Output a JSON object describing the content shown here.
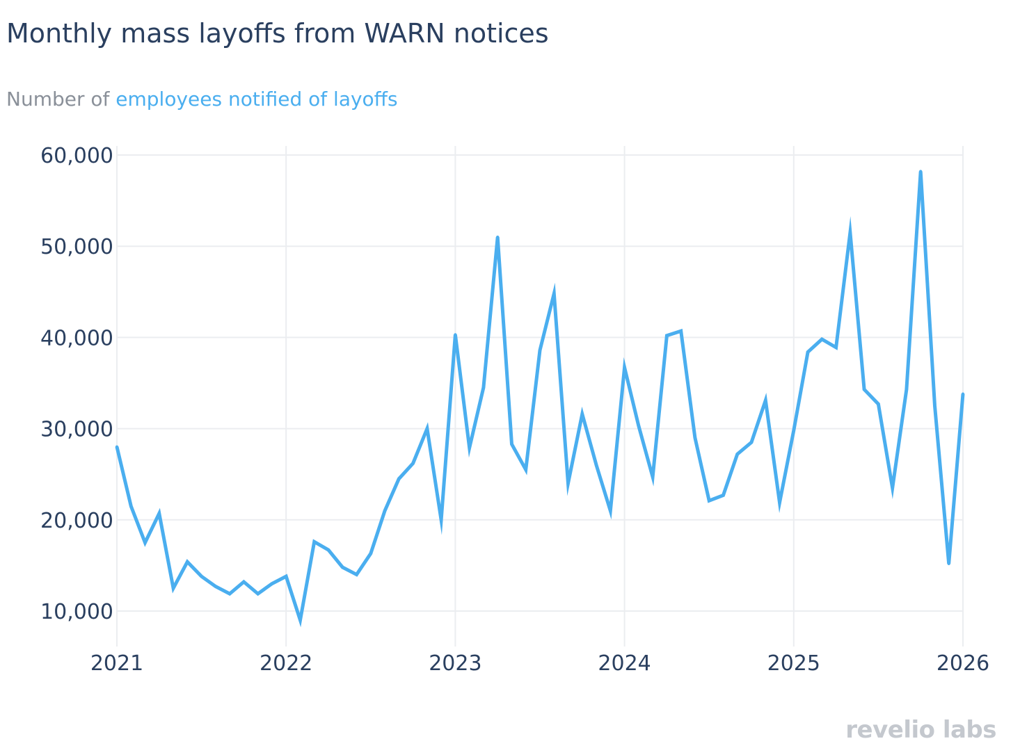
{
  "title": "Monthly mass layoffs from WARN notices",
  "subtitle": {
    "prefix": "Number of",
    "series_label": "employees notified of layoffs"
  },
  "logo": "revelio labs",
  "colors": {
    "series": "#4aaeef",
    "grid": "#ebedf0",
    "text": "#2a3f5f",
    "muted": "#8a9099"
  },
  "chart_data": {
    "type": "line",
    "x_start": "2021-01",
    "x_step": "month",
    "x_ticks": [
      "2021",
      "2022",
      "2023",
      "2024",
      "2025",
      "2026"
    ],
    "y_ticks": [
      "10,000",
      "20,000",
      "30,000",
      "40,000",
      "50,000",
      "60,000"
    ],
    "ylim": [
      6500,
      61000
    ],
    "grid": true,
    "legend": "none",
    "series": [
      {
        "name": "employees notified of layoffs",
        "values": [
          28000,
          21500,
          17500,
          20700,
          12500,
          15400,
          13800,
          12700,
          11900,
          13200,
          11900,
          13000,
          13800,
          9000,
          17600,
          16700,
          14800,
          14000,
          16300,
          21000,
          24500,
          26200,
          30000,
          20000,
          40300,
          27900,
          34500,
          51000,
          28300,
          25500,
          38600,
          44800,
          24000,
          31600,
          26000,
          21000,
          36700,
          30300,
          24700,
          40200,
          40700,
          29000,
          22100,
          22700,
          27200,
          28500,
          33100,
          21900,
          29800,
          38400,
          39800,
          38900,
          51500,
          34300,
          32700,
          23500,
          34300,
          58200,
          32500,
          15200,
          33800
        ]
      }
    ]
  }
}
